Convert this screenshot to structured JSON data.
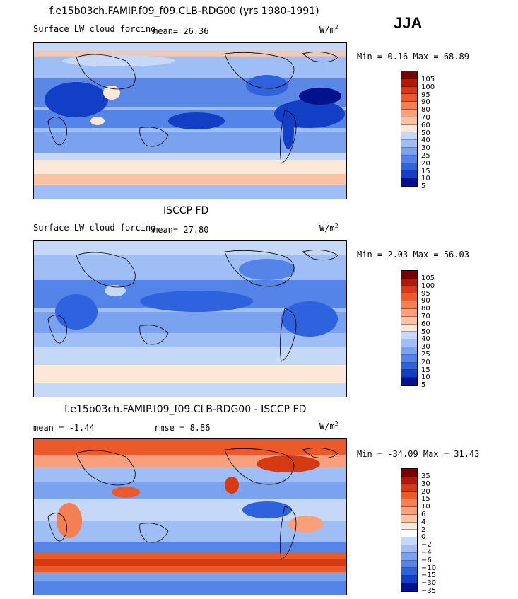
{
  "season": "JJA",
  "unit_base": "W/m",
  "unit_exp": "2",
  "panels": [
    {
      "title": "f.e15b03ch.FAMIP.f09_f09.CLB-RDG00 (yrs 1980-1991)",
      "subtitle": "Surface LW cloud forcing",
      "stat_text": "mean=  26.36",
      "minmax": "Min =   0.16 Max =  68.89",
      "colorbar_labels": [
        "105",
        "100",
        "95",
        "90",
        "80",
        "70",
        "60",
        "50",
        "40",
        "30",
        "25",
        "20",
        "15",
        "10",
        "5"
      ]
    },
    {
      "title": "ISCCP FD",
      "subtitle": "Surface LW cloud forcing",
      "stat_text": "mean=  27.80",
      "minmax": "Min =   2.03 Max =  56.03",
      "colorbar_labels": [
        "105",
        "100",
        "95",
        "90",
        "80",
        "70",
        "60",
        "50",
        "40",
        "30",
        "25",
        "20",
        "15",
        "10",
        "5"
      ]
    },
    {
      "title": "f.e15b03ch.FAMIP.f09_f09.CLB-RDG00 - ISCCP FD",
      "stat_mean": "mean =  -1.44",
      "stat_rmse": "rmse =   8.86",
      "minmax": "Min = -34.09 Max =  31.43",
      "colorbar_labels": [
        "35",
        "30",
        "20",
        "15",
        "10",
        "6",
        "4",
        "2",
        "0",
        "−2",
        "−4",
        "−6",
        "−10",
        "−15",
        "−30",
        "−35"
      ]
    }
  ],
  "colors": {
    "absolute_scale": [
      "#7a0000",
      "#b01a05",
      "#d63a12",
      "#ec5a2a",
      "#f47f52",
      "#f8a07c",
      "#fbc3a4",
      "#fde7d8",
      "#c5d8f8",
      "#9fbef5",
      "#7aa2ef",
      "#5584e8",
      "#2f62de",
      "#123fc6",
      "#00128c"
    ],
    "diff_scale": [
      "#7a0000",
      "#b01a05",
      "#d63a12",
      "#ec5a2a",
      "#f47f52",
      "#f8a07c",
      "#fbc3a4",
      "#fde7d8",
      "#ffffff",
      "#c5d8f8",
      "#9fbef5",
      "#7aa2ef",
      "#5584e8",
      "#2f62de",
      "#123fc6",
      "#00128c"
    ],
    "coast": "#000000"
  }
}
